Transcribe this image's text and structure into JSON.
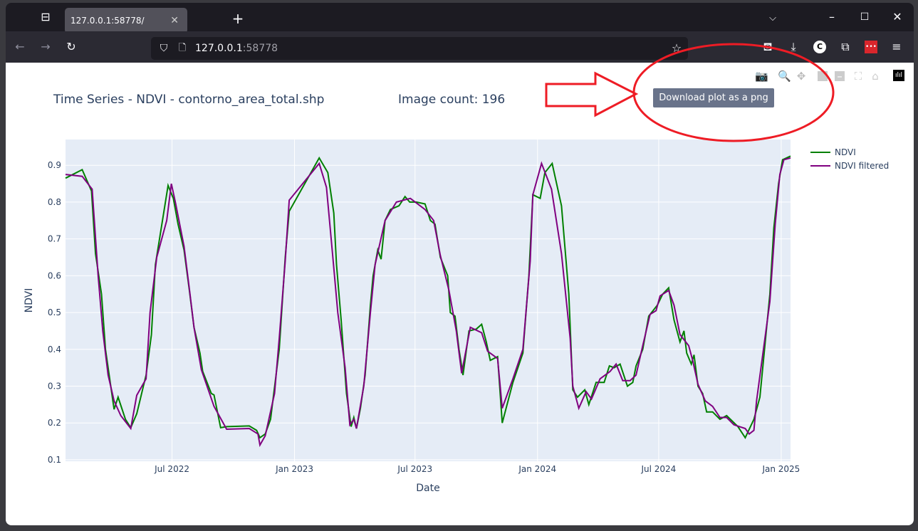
{
  "browser": {
    "tab_title": "127.0.0.1:58778/",
    "url_host": "127.0.0.1",
    "url_port": ":58778"
  },
  "page": {
    "title": "Time Series - NDVI - contorno_area_total.shp",
    "image_count": "Image count: 196"
  },
  "modebar": {
    "tooltip": "Download plot as a png",
    "icons": [
      "camera-icon",
      "zoom-icon",
      "pan-icon",
      "zoom-in-icon",
      "zoom-out-icon",
      "autoscale-icon",
      "reset-axes-icon",
      "plotly-logo-icon"
    ]
  },
  "annotation_color": "#ee1c25",
  "chart_data": {
    "type": "line",
    "xlabel": "Date",
    "ylabel": "NDVI",
    "xlim": [
      "2022-01-22",
      "2025-01-15"
    ],
    "ylim": [
      0.096,
      0.97
    ],
    "xticks": [
      {
        "date": "2022-07-01",
        "label": "Jul 2022"
      },
      {
        "date": "2023-01-01",
        "label": "Jan 2023"
      },
      {
        "date": "2023-07-01",
        "label": "Jul 2023"
      },
      {
        "date": "2024-01-01",
        "label": "Jan 2024"
      },
      {
        "date": "2024-07-01",
        "label": "Jul 2024"
      },
      {
        "date": "2025-01-01",
        "label": "Jan 2025"
      }
    ],
    "yticks": [
      0.1,
      0.2,
      0.3,
      0.4,
      0.5,
      0.6,
      0.7,
      0.8,
      0.9
    ],
    "grid": true,
    "legend": "top-right",
    "series": [
      {
        "name": "NDVI",
        "color": "#008000",
        "points": [
          [
            "2022-01-22",
            0.865
          ],
          [
            "2022-02-16",
            0.888
          ],
          [
            "2022-03-02",
            0.83
          ],
          [
            "2022-03-08",
            0.66
          ],
          [
            "2022-03-17",
            0.55
          ],
          [
            "2022-03-23",
            0.4
          ],
          [
            "2022-04-05",
            0.237
          ],
          [
            "2022-04-11",
            0.27
          ],
          [
            "2022-04-22",
            0.21
          ],
          [
            "2022-04-30",
            0.187
          ],
          [
            "2022-05-09",
            0.225
          ],
          [
            "2022-05-23",
            0.33
          ],
          [
            "2022-05-31",
            0.44
          ],
          [
            "2022-06-06",
            0.63
          ],
          [
            "2022-06-25",
            0.845
          ],
          [
            "2022-07-03",
            0.81
          ],
          [
            "2022-07-10",
            0.74
          ],
          [
            "2022-07-19",
            0.67
          ],
          [
            "2022-07-27",
            0.56
          ],
          [
            "2022-08-03",
            0.46
          ],
          [
            "2022-08-12",
            0.39
          ],
          [
            "2022-08-16",
            0.34
          ],
          [
            "2022-08-29",
            0.28
          ],
          [
            "2022-09-02",
            0.276
          ],
          [
            "2022-09-12",
            0.187
          ],
          [
            "2022-09-21",
            0.19
          ],
          [
            "2022-10-25",
            0.192
          ],
          [
            "2022-11-05",
            0.18
          ],
          [
            "2022-11-10",
            0.16
          ],
          [
            "2022-11-18",
            0.17
          ],
          [
            "2022-11-26",
            0.21
          ],
          [
            "2022-12-09",
            0.4
          ],
          [
            "2022-12-18",
            0.65
          ],
          [
            "2022-12-24",
            0.775
          ],
          [
            "2023-02-07",
            0.92
          ],
          [
            "2023-02-20",
            0.88
          ],
          [
            "2023-03-01",
            0.77
          ],
          [
            "2023-03-05",
            0.63
          ],
          [
            "2023-03-12",
            0.48
          ],
          [
            "2023-03-20",
            0.28
          ],
          [
            "2023-03-27",
            0.19
          ],
          [
            "2023-03-31",
            0.215
          ],
          [
            "2023-04-04",
            0.185
          ],
          [
            "2023-04-10",
            0.24
          ],
          [
            "2023-04-17",
            0.33
          ],
          [
            "2023-04-25",
            0.52
          ],
          [
            "2023-04-29",
            0.6
          ],
          [
            "2023-05-06",
            0.67
          ],
          [
            "2023-05-11",
            0.645
          ],
          [
            "2023-05-17",
            0.75
          ],
          [
            "2023-05-25",
            0.78
          ],
          [
            "2023-06-07",
            0.79
          ],
          [
            "2023-06-16",
            0.815
          ],
          [
            "2023-06-23",
            0.8
          ],
          [
            "2023-07-03",
            0.8
          ],
          [
            "2023-07-16",
            0.795
          ],
          [
            "2023-07-24",
            0.75
          ],
          [
            "2023-07-31",
            0.74
          ],
          [
            "2023-08-08",
            0.65
          ],
          [
            "2023-08-19",
            0.6
          ],
          [
            "2023-08-23",
            0.5
          ],
          [
            "2023-08-30",
            0.49
          ],
          [
            "2023-09-05",
            0.4
          ],
          [
            "2023-09-11",
            0.33
          ],
          [
            "2023-09-20",
            0.45
          ],
          [
            "2023-10-01",
            0.455
          ],
          [
            "2023-10-09",
            0.468
          ],
          [
            "2023-10-16",
            0.42
          ],
          [
            "2023-10-22",
            0.37
          ],
          [
            "2023-11-02",
            0.38
          ],
          [
            "2023-11-09",
            0.2
          ],
          [
            "2023-11-25",
            0.31
          ],
          [
            "2023-12-10",
            0.39
          ],
          [
            "2023-12-19",
            0.6
          ],
          [
            "2023-12-25",
            0.82
          ],
          [
            "2024-01-05",
            0.81
          ],
          [
            "2024-01-12",
            0.88
          ],
          [
            "2024-01-23",
            0.905
          ],
          [
            "2024-02-06",
            0.79
          ],
          [
            "2024-02-17",
            0.55
          ],
          [
            "2024-02-23",
            0.29
          ],
          [
            "2024-03-01",
            0.27
          ],
          [
            "2024-03-12",
            0.29
          ],
          [
            "2024-03-18",
            0.25
          ],
          [
            "2024-03-29",
            0.31
          ],
          [
            "2024-04-10",
            0.31
          ],
          [
            "2024-04-18",
            0.355
          ],
          [
            "2024-04-25",
            0.35
          ],
          [
            "2024-05-04",
            0.36
          ],
          [
            "2024-05-15",
            0.3
          ],
          [
            "2024-05-23",
            0.31
          ],
          [
            "2024-05-28",
            0.355
          ],
          [
            "2024-06-07",
            0.4
          ],
          [
            "2024-06-16",
            0.49
          ],
          [
            "2024-06-29",
            0.52
          ],
          [
            "2024-07-07",
            0.55
          ],
          [
            "2024-07-16",
            0.567
          ],
          [
            "2024-07-24",
            0.48
          ],
          [
            "2024-08-02",
            0.42
          ],
          [
            "2024-08-08",
            0.45
          ],
          [
            "2024-08-12",
            0.39
          ],
          [
            "2024-08-19",
            0.36
          ],
          [
            "2024-08-23",
            0.385
          ],
          [
            "2024-08-29",
            0.3
          ],
          [
            "2024-09-05",
            0.28
          ],
          [
            "2024-09-11",
            0.23
          ],
          [
            "2024-09-20",
            0.23
          ],
          [
            "2024-10-01",
            0.21
          ],
          [
            "2024-10-11",
            0.22
          ],
          [
            "2024-10-28",
            0.19
          ],
          [
            "2024-11-08",
            0.16
          ],
          [
            "2024-11-21",
            0.21
          ],
          [
            "2024-11-30",
            0.27
          ],
          [
            "2024-12-15",
            0.55
          ],
          [
            "2024-12-21",
            0.73
          ],
          [
            "2024-12-28",
            0.85
          ],
          [
            "2025-01-03",
            0.915
          ],
          [
            "2025-01-15",
            0.925
          ]
        ]
      },
      {
        "name": "NDVI filtered",
        "color": "#800080",
        "points": [
          [
            "2022-01-22",
            0.875
          ],
          [
            "2022-02-16",
            0.87
          ],
          [
            "2022-03-03",
            0.835
          ],
          [
            "2022-03-12",
            0.6
          ],
          [
            "2022-03-19",
            0.45
          ],
          [
            "2022-03-27",
            0.33
          ],
          [
            "2022-04-05",
            0.26
          ],
          [
            "2022-04-15",
            0.22
          ],
          [
            "2022-04-30",
            0.185
          ],
          [
            "2022-05-09",
            0.275
          ],
          [
            "2022-05-23",
            0.32
          ],
          [
            "2022-05-29",
            0.5
          ],
          [
            "2022-06-08",
            0.65
          ],
          [
            "2022-06-23",
            0.75
          ],
          [
            "2022-06-30",
            0.85
          ],
          [
            "2022-07-06",
            0.8
          ],
          [
            "2022-07-19",
            0.68
          ],
          [
            "2022-07-28",
            0.55
          ],
          [
            "2022-08-03",
            0.46
          ],
          [
            "2022-08-14",
            0.345
          ],
          [
            "2022-09-02",
            0.245
          ],
          [
            "2022-09-21",
            0.183
          ],
          [
            "2022-10-25",
            0.185
          ],
          [
            "2022-11-07",
            0.17
          ],
          [
            "2022-11-10",
            0.14
          ],
          [
            "2022-11-18",
            0.165
          ],
          [
            "2022-12-02",
            0.28
          ],
          [
            "2022-12-09",
            0.43
          ],
          [
            "2022-12-18",
            0.64
          ],
          [
            "2022-12-24",
            0.805
          ],
          [
            "2023-02-07",
            0.905
          ],
          [
            "2023-02-18",
            0.84
          ],
          [
            "2023-02-27",
            0.66
          ],
          [
            "2023-03-07",
            0.5
          ],
          [
            "2023-03-18",
            0.35
          ],
          [
            "2023-03-25",
            0.195
          ],
          [
            "2023-03-31",
            0.21
          ],
          [
            "2023-04-04",
            0.185
          ],
          [
            "2023-04-15",
            0.3
          ],
          [
            "2023-04-25",
            0.5
          ],
          [
            "2023-05-02",
            0.63
          ],
          [
            "2023-05-17",
            0.75
          ],
          [
            "2023-06-03",
            0.8
          ],
          [
            "2023-06-24",
            0.81
          ],
          [
            "2023-07-16",
            0.78
          ],
          [
            "2023-07-29",
            0.75
          ],
          [
            "2023-08-08",
            0.655
          ],
          [
            "2023-08-21",
            0.56
          ],
          [
            "2023-09-01",
            0.45
          ],
          [
            "2023-09-09",
            0.335
          ],
          [
            "2023-09-22",
            0.46
          ],
          [
            "2023-10-09",
            0.445
          ],
          [
            "2023-10-18",
            0.395
          ],
          [
            "2023-11-02",
            0.375
          ],
          [
            "2023-11-09",
            0.24
          ],
          [
            "2023-11-25",
            0.32
          ],
          [
            "2023-12-10",
            0.4
          ],
          [
            "2023-12-21",
            0.64
          ],
          [
            "2023-12-25",
            0.82
          ],
          [
            "2024-01-07",
            0.905
          ],
          [
            "2024-01-22",
            0.835
          ],
          [
            "2024-02-06",
            0.66
          ],
          [
            "2024-02-19",
            0.43
          ],
          [
            "2024-02-23",
            0.3
          ],
          [
            "2024-03-03",
            0.24
          ],
          [
            "2024-03-14",
            0.285
          ],
          [
            "2024-03-22",
            0.265
          ],
          [
            "2024-04-04",
            0.32
          ],
          [
            "2024-04-19",
            0.34
          ],
          [
            "2024-04-28",
            0.36
          ],
          [
            "2024-05-08",
            0.315
          ],
          [
            "2024-05-19",
            0.315
          ],
          [
            "2024-05-28",
            0.33
          ],
          [
            "2024-06-07",
            0.41
          ],
          [
            "2024-06-18",
            0.495
          ],
          [
            "2024-06-27",
            0.505
          ],
          [
            "2024-07-03",
            0.545
          ],
          [
            "2024-07-16",
            0.56
          ],
          [
            "2024-07-24",
            0.52
          ],
          [
            "2024-08-02",
            0.44
          ],
          [
            "2024-08-15",
            0.41
          ],
          [
            "2024-08-21",
            0.37
          ],
          [
            "2024-08-29",
            0.305
          ],
          [
            "2024-09-09",
            0.26
          ],
          [
            "2024-09-20",
            0.245
          ],
          [
            "2024-10-01",
            0.215
          ],
          [
            "2024-10-11",
            0.215
          ],
          [
            "2024-10-22",
            0.195
          ],
          [
            "2024-11-08",
            0.185
          ],
          [
            "2024-11-14",
            0.17
          ],
          [
            "2024-11-21",
            0.18
          ],
          [
            "2024-11-25",
            0.26
          ],
          [
            "2024-12-15",
            0.53
          ],
          [
            "2024-12-23",
            0.74
          ],
          [
            "2024-12-30",
            0.875
          ],
          [
            "2025-01-05",
            0.915
          ],
          [
            "2025-01-15",
            0.92
          ]
        ]
      }
    ]
  }
}
